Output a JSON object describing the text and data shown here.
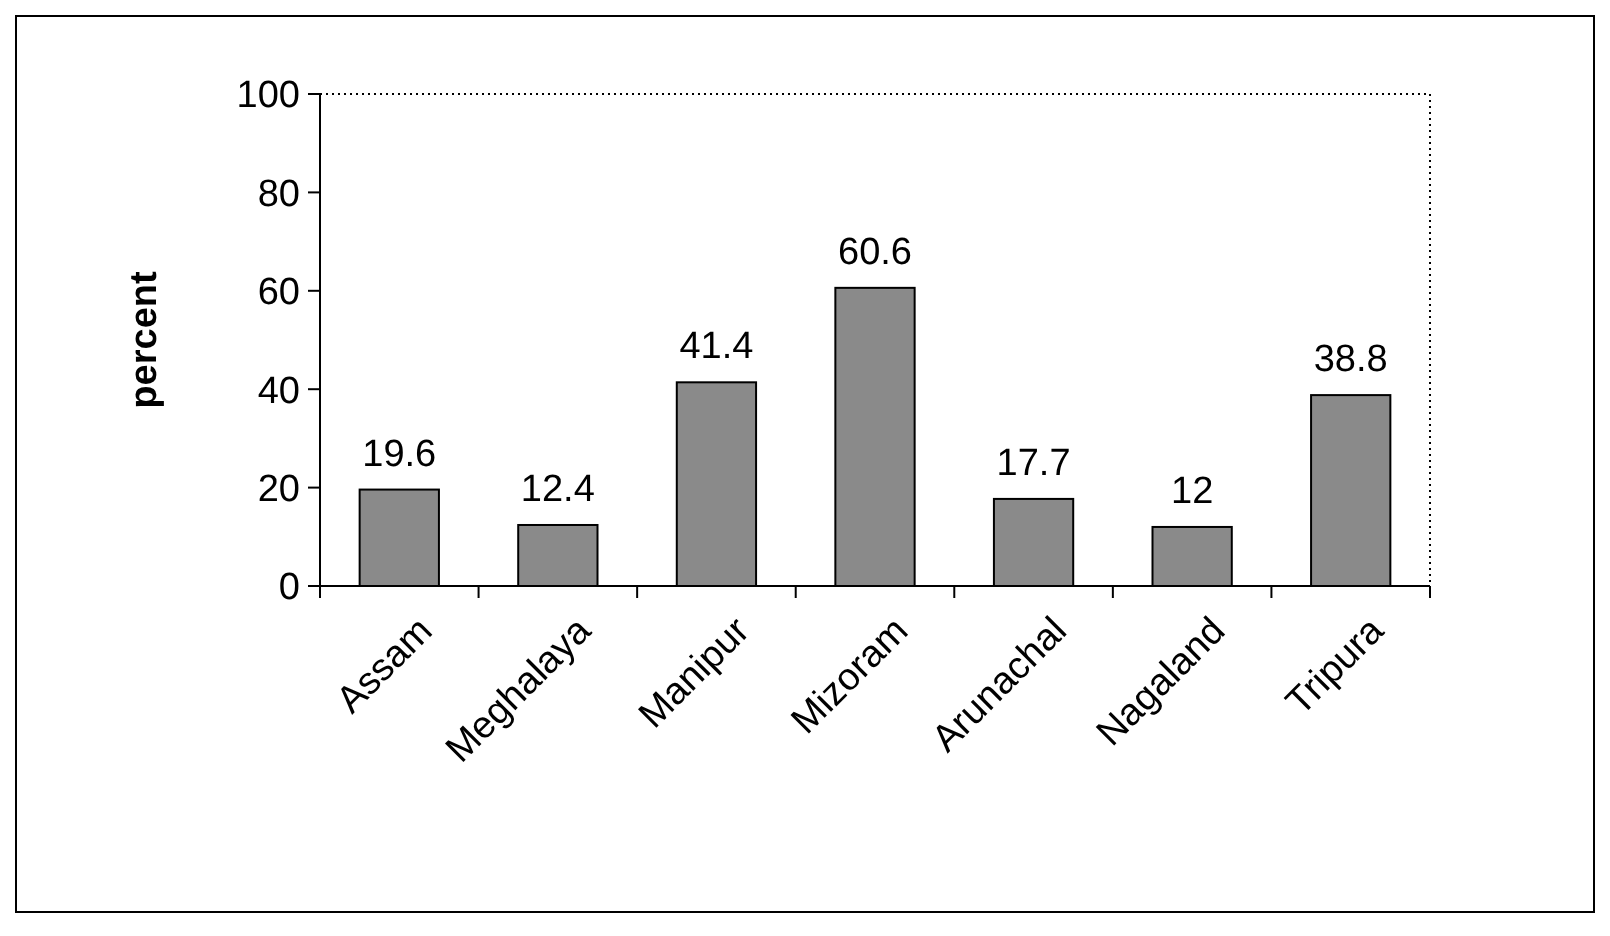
{
  "chart_data": {
    "type": "bar",
    "ylabel": "percent",
    "categories": [
      "Assam",
      "Meghalaya",
      "Manipur",
      "Mizoram",
      "Arunachal",
      "Nagaland",
      "Tripura"
    ],
    "values": [
      19.6,
      12.4,
      41.4,
      60.6,
      17.7,
      12,
      38.8
    ],
    "color": "#8a8a8a",
    "ylim": [
      0,
      100
    ],
    "yticks": [
      0,
      20,
      40,
      60,
      80,
      100
    ],
    "data_labels": true
  }
}
